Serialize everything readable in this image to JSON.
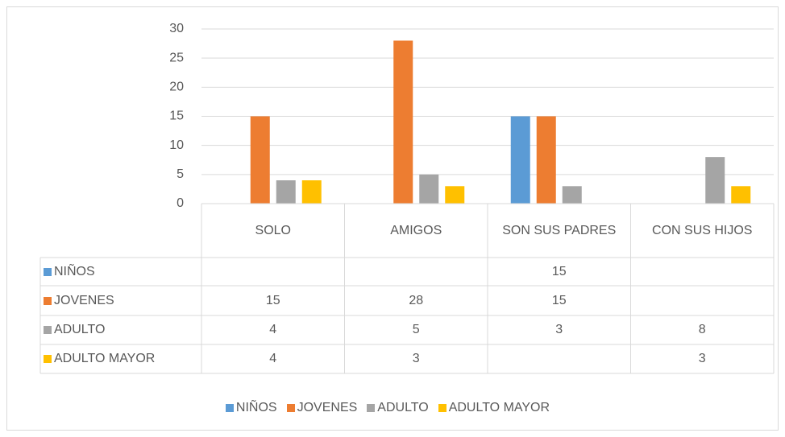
{
  "chart_data": {
    "type": "bar",
    "categories": [
      "SOLO",
      "AMIGOS",
      "SON SUS PADRES",
      "CON SUS HIJOS"
    ],
    "series": [
      {
        "name": "NIÑOS",
        "color": "#5b9bd5",
        "values": [
          null,
          null,
          15,
          null
        ]
      },
      {
        "name": "JOVENES",
        "color": "#ed7d31",
        "values": [
          15,
          28,
          15,
          null
        ]
      },
      {
        "name": "ADULTO",
        "color": "#a5a5a5",
        "values": [
          4,
          5,
          3,
          8
        ]
      },
      {
        "name": "ADULTO MAYOR",
        "color": "#ffc000",
        "values": [
          4,
          3,
          null,
          3
        ]
      }
    ],
    "ylim": [
      0,
      30
    ],
    "yticks": [
      0,
      5,
      10,
      15,
      20,
      25,
      30
    ],
    "grid": true,
    "legend": "bottom"
  }
}
